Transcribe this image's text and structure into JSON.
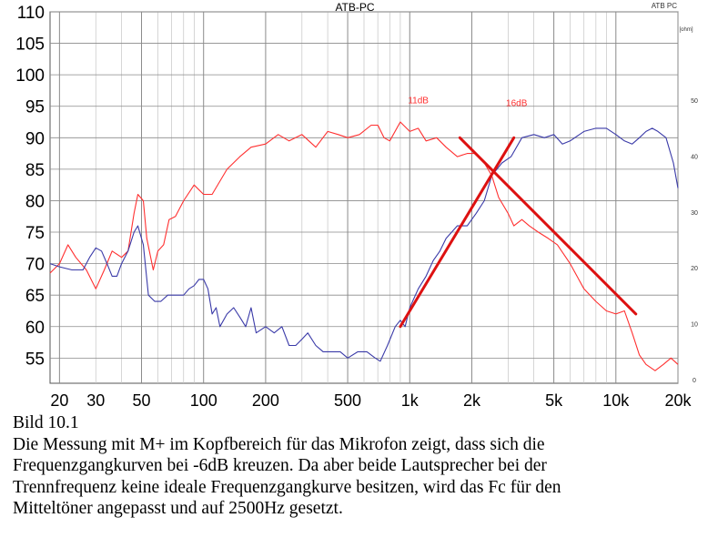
{
  "chart_data": {
    "type": "line",
    "title": "ATB-PC",
    "top_right_label": "ATB PC",
    "x_scale": "log",
    "xlim": [
      18,
      20000
    ],
    "x_ticks": [
      {
        "value": 20,
        "label": "20"
      },
      {
        "value": 30,
        "label": "30"
      },
      {
        "value": 50,
        "label": "50"
      },
      {
        "value": 100,
        "label": "100"
      },
      {
        "value": 200,
        "label": "200"
      },
      {
        "value": 500,
        "label": "500"
      },
      {
        "value": 1000,
        "label": "1k"
      },
      {
        "value": 2000,
        "label": "2k"
      },
      {
        "value": 5000,
        "label": "5k"
      },
      {
        "value": 10000,
        "label": "10k"
      },
      {
        "value": 20000,
        "label": "20k"
      }
    ],
    "ylim": [
      51,
      110
    ],
    "y_ticks": [
      55,
      60,
      65,
      70,
      75,
      80,
      85,
      90,
      95,
      100,
      105,
      110
    ],
    "y2_unit": "[ohm]",
    "y2_ticks": [
      0,
      10,
      20,
      30,
      40,
      50
    ],
    "grid": true,
    "series": [
      {
        "color": "#ff3030",
        "points": [
          [
            18,
            68.5
          ],
          [
            20,
            70
          ],
          [
            22,
            73
          ],
          [
            24,
            71
          ],
          [
            27,
            69
          ],
          [
            30,
            66
          ],
          [
            33,
            69
          ],
          [
            36,
            72
          ],
          [
            40,
            71
          ],
          [
            43,
            72
          ],
          [
            46,
            78
          ],
          [
            48,
            81
          ],
          [
            51,
            80
          ],
          [
            53,
            74
          ],
          [
            57,
            69
          ],
          [
            60,
            72
          ],
          [
            64,
            73
          ],
          [
            68,
            77
          ],
          [
            73,
            77.5
          ],
          [
            80,
            80
          ],
          [
            90,
            82.5
          ],
          [
            100,
            81
          ],
          [
            110,
            81
          ],
          [
            130,
            85
          ],
          [
            150,
            87
          ],
          [
            170,
            88.5
          ],
          [
            200,
            89
          ],
          [
            230,
            90.5
          ],
          [
            260,
            89.5
          ],
          [
            300,
            90.5
          ],
          [
            350,
            88.5
          ],
          [
            400,
            91
          ],
          [
            450,
            90.5
          ],
          [
            500,
            90
          ],
          [
            570,
            90.5
          ],
          [
            650,
            92
          ],
          [
            700,
            92
          ],
          [
            750,
            90
          ],
          [
            800,
            89.5
          ],
          [
            900,
            92.5
          ],
          [
            1000,
            91
          ],
          [
            1100,
            91.5
          ],
          [
            1200,
            89.5
          ],
          [
            1350,
            90
          ],
          [
            1500,
            88.5
          ],
          [
            1700,
            87
          ],
          [
            1900,
            87.5
          ],
          [
            2100,
            87.5
          ],
          [
            2300,
            86
          ],
          [
            2500,
            84
          ],
          [
            2700,
            80.5
          ],
          [
            3000,
            78
          ],
          [
            3200,
            76
          ],
          [
            3500,
            77
          ],
          [
            3800,
            76
          ],
          [
            4200,
            75
          ],
          [
            4700,
            74
          ],
          [
            5200,
            73
          ],
          [
            6000,
            70
          ],
          [
            7000,
            66
          ],
          [
            8000,
            64
          ],
          [
            9000,
            62.5
          ],
          [
            10000,
            62
          ],
          [
            11000,
            62.5
          ],
          [
            12000,
            59
          ],
          [
            13000,
            55.5
          ],
          [
            14000,
            54
          ],
          [
            15500,
            53
          ],
          [
            17000,
            54
          ],
          [
            18500,
            55
          ],
          [
            20000,
            54
          ]
        ]
      },
      {
        "color": "#3a3aa8",
        "points": [
          [
            18,
            70
          ],
          [
            20,
            69.5
          ],
          [
            23,
            69
          ],
          [
            26,
            69
          ],
          [
            28,
            71
          ],
          [
            30,
            72.5
          ],
          [
            32,
            72
          ],
          [
            34,
            70
          ],
          [
            36,
            68
          ],
          [
            38,
            68
          ],
          [
            40,
            70
          ],
          [
            43,
            72
          ],
          [
            46,
            75
          ],
          [
            48,
            76
          ],
          [
            51,
            73
          ],
          [
            54,
            65
          ],
          [
            58,
            64
          ],
          [
            62,
            64
          ],
          [
            67,
            65
          ],
          [
            73,
            65
          ],
          [
            80,
            65
          ],
          [
            85,
            66
          ],
          [
            90,
            66.5
          ],
          [
            95,
            67.5
          ],
          [
            100,
            67.5
          ],
          [
            105,
            66
          ],
          [
            110,
            62
          ],
          [
            115,
            63
          ],
          [
            120,
            60
          ],
          [
            130,
            62
          ],
          [
            140,
            63
          ],
          [
            150,
            61.5
          ],
          [
            160,
            60
          ],
          [
            170,
            63
          ],
          [
            180,
            59
          ],
          [
            200,
            60
          ],
          [
            220,
            59
          ],
          [
            240,
            60
          ],
          [
            260,
            57
          ],
          [
            280,
            57
          ],
          [
            300,
            58
          ],
          [
            320,
            59
          ],
          [
            350,
            57
          ],
          [
            380,
            56
          ],
          [
            420,
            56
          ],
          [
            460,
            56
          ],
          [
            500,
            55
          ],
          [
            560,
            56
          ],
          [
            620,
            56
          ],
          [
            680,
            55
          ],
          [
            720,
            54.5
          ],
          [
            780,
            57
          ],
          [
            850,
            60
          ],
          [
            900,
            61
          ],
          [
            950,
            60
          ],
          [
            1000,
            63
          ],
          [
            1100,
            66
          ],
          [
            1200,
            68
          ],
          [
            1300,
            70.5
          ],
          [
            1400,
            72
          ],
          [
            1500,
            74
          ],
          [
            1700,
            76
          ],
          [
            1900,
            76
          ],
          [
            2100,
            78
          ],
          [
            2300,
            80
          ],
          [
            2500,
            84
          ],
          [
            2800,
            86
          ],
          [
            3100,
            87
          ],
          [
            3500,
            90
          ],
          [
            4000,
            90.5
          ],
          [
            4500,
            90
          ],
          [
            5000,
            90.5
          ],
          [
            5500,
            89
          ],
          [
            6000,
            89.5
          ],
          [
            7000,
            91
          ],
          [
            8000,
            91.5
          ],
          [
            9000,
            91.5
          ],
          [
            10000,
            90.5
          ],
          [
            11000,
            89.5
          ],
          [
            12000,
            89
          ],
          [
            13000,
            90
          ],
          [
            14000,
            91
          ],
          [
            15000,
            91.5
          ],
          [
            16000,
            91
          ],
          [
            17500,
            90
          ],
          [
            19000,
            86
          ],
          [
            20000,
            82
          ]
        ]
      }
    ],
    "annotations": [
      {
        "text": "11dB",
        "x": 1100,
        "y": 95.5,
        "color": "#ff3030"
      },
      {
        "text": "16dB",
        "x": 3300,
        "y": 95,
        "color": "#ff3030"
      }
    ],
    "trend_lines": [
      {
        "color": "#dd1111",
        "from": [
          900,
          60
        ],
        "to": [
          3200,
          90
        ]
      },
      {
        "color": "#dd1111",
        "from": [
          1750,
          90
        ],
        "to": [
          12500,
          62
        ]
      }
    ]
  },
  "caption": {
    "label": "Bild 10.1",
    "lines": [
      "Die Messung mit M+ im Kopfbereich für das Mikrofon zeigt, dass sich die",
      "Frequenzgangkurven bei -6dB kreuzen. Da aber beide Lautsprecher bei der",
      "Trennfrequenz keine ideale Frequenzgangkurve besitzen, wird das Fc für den",
      "Mitteltöner angepasst und auf 2500Hz gesetzt."
    ]
  }
}
